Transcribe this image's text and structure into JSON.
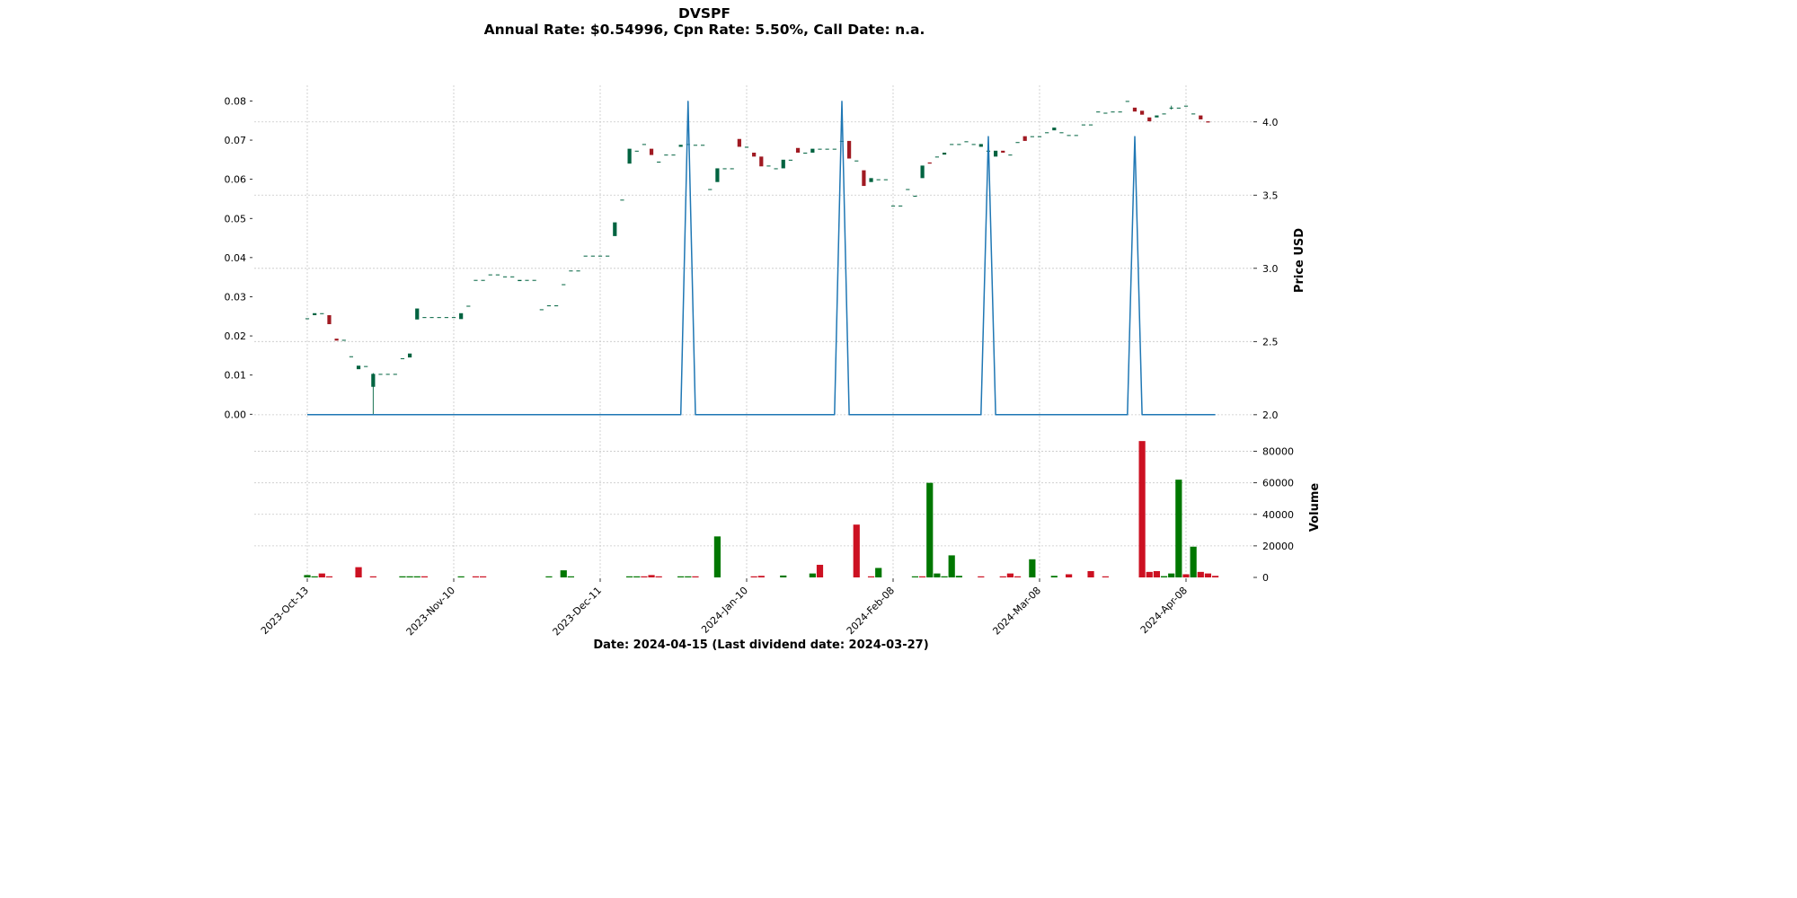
{
  "title": {
    "line1": "DVSPF",
    "line2": "Annual Rate: $0.54996, Cpn Rate: 5.50%, Call Date: n.a."
  },
  "xlabel": "Date: 2024-04-15   (Last dividend date: 2024-03-27)",
  "colors": {
    "up_candle": "#006340",
    "down_candle": "#a01a22",
    "up_volume": "#007700",
    "down_volume": "#cc1122",
    "dividend_line": "#1f77b4",
    "grid": "#c8c8c8"
  },
  "chart_data": [
    {
      "type": "candlestick",
      "name": "dividend-yield",
      "ylim": [
        -0.002,
        0.084
      ],
      "yticks": [
        "0.00",
        "0.01",
        "0.02",
        "0.03",
        "0.04",
        "0.05",
        "0.06",
        "0.07",
        "0.08"
      ],
      "ytick_values": [
        0,
        0.01,
        0.02,
        0.03,
        0.04,
        0.05,
        0.06,
        0.07,
        0.08
      ],
      "xtick_labels": [
        "2023-Oct-13",
        "2023-Nov-10",
        "2023-Dec-11",
        "2024-Jan-10",
        "2024-Feb-08",
        "2024-Mar-08",
        "2024-Apr-08"
      ],
      "xtick_index": [
        0,
        20,
        40,
        60,
        80,
        100,
        120
      ],
      "x_count": 126,
      "grid": true,
      "candles": [
        [
          0,
          0.0245,
          0.0245,
          0.0245,
          0.0245
        ],
        [
          1,
          0.0253,
          0.0258,
          0.0253,
          0.0258
        ],
        [
          2,
          0.0258,
          0.0258,
          0.0258,
          0.0258
        ],
        [
          3,
          0.0253,
          0.0253,
          0.023,
          0.023
        ],
        [
          4,
          0.0193,
          0.0193,
          0.0188,
          0.0188
        ],
        [
          5,
          0.019,
          0.019,
          0.019,
          0.019
        ],
        [
          6,
          0.0148,
          0.0148,
          0.0148,
          0.0148
        ],
        [
          7,
          0.0115,
          0.0124,
          0.0115,
          0.0124
        ],
        [
          8,
          0.0123,
          0.0123,
          0.0123,
          0.0123
        ],
        [
          9,
          0.007,
          0.0105,
          0.0,
          0.0103
        ],
        [
          10,
          0.0103,
          0.0103,
          0.0103,
          0.0103
        ],
        [
          11,
          0.0103,
          0.0103,
          0.0103,
          0.0103
        ],
        [
          12,
          0.0103,
          0.0103,
          0.0103,
          0.0103
        ],
        [
          13,
          0.0143,
          0.0143,
          0.0143,
          0.0143
        ],
        [
          14,
          0.0145,
          0.0155,
          0.0145,
          0.0155
        ],
        [
          15,
          0.0242,
          0.027,
          0.0242,
          0.027
        ],
        [
          16,
          0.0248,
          0.0248,
          0.0248,
          0.0248
        ],
        [
          17,
          0.0248,
          0.0248,
          0.0248,
          0.0248
        ],
        [
          18,
          0.0248,
          0.0248,
          0.0248,
          0.0248
        ],
        [
          19,
          0.0248,
          0.0248,
          0.0248,
          0.0248
        ],
        [
          20,
          0.0248,
          0.0248,
          0.0248,
          0.0248
        ],
        [
          21,
          0.0243,
          0.0258,
          0.0243,
          0.0258
        ],
        [
          22,
          0.0277,
          0.0277,
          0.0277,
          0.0277
        ],
        [
          23,
          0.0343,
          0.0343,
          0.0343,
          0.0343
        ],
        [
          24,
          0.0343,
          0.0343,
          0.0343,
          0.0343
        ],
        [
          25,
          0.0357,
          0.0357,
          0.0357,
          0.0357
        ],
        [
          26,
          0.0357,
          0.0357,
          0.0357,
          0.0357
        ],
        [
          27,
          0.0352,
          0.0352,
          0.0352,
          0.0352
        ],
        [
          28,
          0.0352,
          0.0352,
          0.0352,
          0.0352
        ],
        [
          29,
          0.034,
          0.0343,
          0.034,
          0.0343
        ],
        [
          30,
          0.0343,
          0.0343,
          0.0343,
          0.0343
        ],
        [
          31,
          0.0343,
          0.0343,
          0.0343,
          0.0343
        ],
        [
          32,
          0.0268,
          0.0268,
          0.0268,
          0.0268
        ],
        [
          33,
          0.0278,
          0.0278,
          0.0278,
          0.0278
        ],
        [
          34,
          0.0278,
          0.0278,
          0.0278,
          0.0278
        ],
        [
          35,
          0.0332,
          0.0332,
          0.0332,
          0.0332
        ],
        [
          36,
          0.0367,
          0.0367,
          0.0367,
          0.0367
        ],
        [
          37,
          0.0367,
          0.0367,
          0.0367,
          0.0367
        ],
        [
          38,
          0.0405,
          0.0405,
          0.0405,
          0.0405
        ],
        [
          39,
          0.0405,
          0.0405,
          0.0405,
          0.0405
        ],
        [
          40,
          0.0405,
          0.0405,
          0.0405,
          0.0405
        ],
        [
          41,
          0.0405,
          0.0405,
          0.0405,
          0.0405
        ],
        [
          42,
          0.0455,
          0.049,
          0.0455,
          0.049
        ],
        [
          43,
          0.0548,
          0.0548,
          0.0548,
          0.0548
        ],
        [
          44,
          0.064,
          0.0678,
          0.064,
          0.0678
        ],
        [
          45,
          0.0673,
          0.0673,
          0.0673,
          0.0673
        ],
        [
          46,
          0.069,
          0.069,
          0.069,
          0.069
        ],
        [
          47,
          0.0678,
          0.0678,
          0.0662,
          0.0662
        ],
        [
          48,
          0.0645,
          0.0645,
          0.0645,
          0.0645
        ],
        [
          49,
          0.0663,
          0.0663,
          0.0663,
          0.0663
        ],
        [
          50,
          0.0663,
          0.0663,
          0.0663,
          0.0663
        ],
        [
          51,
          0.0683,
          0.0688,
          0.0683,
          0.0688
        ],
        [
          52,
          0.069,
          0.069,
          0.069,
          0.069
        ],
        [
          53,
          0.0688,
          0.0688,
          0.0688,
          0.0688
        ],
        [
          54,
          0.0688,
          0.0688,
          0.0688,
          0.0688
        ],
        [
          55,
          0.0575,
          0.0575,
          0.0575,
          0.0575
        ],
        [
          56,
          0.0593,
          0.0628,
          0.0593,
          0.0628
        ],
        [
          57,
          0.0628,
          0.0628,
          0.0628,
          0.0628
        ],
        [
          58,
          0.0628,
          0.0628,
          0.0628,
          0.0628
        ],
        [
          59,
          0.0703,
          0.0703,
          0.0683,
          0.0683
        ],
        [
          60,
          0.0683,
          0.0683,
          0.0683,
          0.0683
        ],
        [
          61,
          0.0668,
          0.0668,
          0.0658,
          0.0658
        ],
        [
          62,
          0.0658,
          0.0658,
          0.0633,
          0.0633
        ],
        [
          63,
          0.0635,
          0.0635,
          0.0635,
          0.0635
        ],
        [
          64,
          0.0628,
          0.0628,
          0.0628,
          0.0628
        ],
        [
          65,
          0.0628,
          0.065,
          0.0628,
          0.065
        ],
        [
          66,
          0.065,
          0.065,
          0.065,
          0.065
        ],
        [
          67,
          0.068,
          0.068,
          0.0668,
          0.0668
        ],
        [
          68,
          0.0668,
          0.0668,
          0.0668,
          0.0668
        ],
        [
          69,
          0.0668,
          0.0678,
          0.0668,
          0.0678
        ],
        [
          70,
          0.0678,
          0.0678,
          0.0678,
          0.0678
        ],
        [
          71,
          0.0678,
          0.0678,
          0.0678,
          0.0678
        ],
        [
          72,
          0.0678,
          0.0678,
          0.0678,
          0.0678
        ],
        [
          73,
          0.0698,
          0.0698,
          0.0698,
          0.0698
        ],
        [
          74,
          0.0698,
          0.0698,
          0.0653,
          0.0653
        ],
        [
          75,
          0.0648,
          0.0648,
          0.0648,
          0.0648
        ],
        [
          76,
          0.0623,
          0.0623,
          0.0583,
          0.0583
        ],
        [
          77,
          0.0593,
          0.0603,
          0.0593,
          0.0603
        ],
        [
          78,
          0.06,
          0.06,
          0.06,
          0.06
        ],
        [
          79,
          0.06,
          0.06,
          0.06,
          0.06
        ],
        [
          80,
          0.0533,
          0.0533,
          0.0533,
          0.0533
        ],
        [
          81,
          0.0533,
          0.0533,
          0.0533,
          0.0533
        ],
        [
          82,
          0.0575,
          0.0575,
          0.0575,
          0.0575
        ],
        [
          83,
          0.0558,
          0.0558,
          0.0558,
          0.0558
        ],
        [
          84,
          0.0603,
          0.0635,
          0.0603,
          0.0635
        ],
        [
          85,
          0.0643,
          0.0643,
          0.064,
          0.064
        ],
        [
          86,
          0.0658,
          0.0658,
          0.0658,
          0.0658
        ],
        [
          87,
          0.0663,
          0.0668,
          0.0663,
          0.0668
        ],
        [
          88,
          0.069,
          0.069,
          0.069,
          0.069
        ],
        [
          89,
          0.069,
          0.069,
          0.069,
          0.069
        ],
        [
          90,
          0.0697,
          0.0697,
          0.0697,
          0.0697
        ],
        [
          91,
          0.069,
          0.069,
          0.069,
          0.069
        ],
        [
          92,
          0.0683,
          0.069,
          0.0683,
          0.069
        ],
        [
          93,
          0.0673,
          0.0673,
          0.0673,
          0.0673
        ],
        [
          94,
          0.0658,
          0.0673,
          0.0658,
          0.0673
        ],
        [
          95,
          0.0673,
          0.0673,
          0.0668,
          0.0668
        ],
        [
          96,
          0.0663,
          0.0663,
          0.0663,
          0.0663
        ],
        [
          97,
          0.0695,
          0.0695,
          0.0695,
          0.0695
        ],
        [
          98,
          0.071,
          0.071,
          0.0698,
          0.0698
        ],
        [
          99,
          0.071,
          0.071,
          0.071,
          0.071
        ],
        [
          100,
          0.071,
          0.071,
          0.071,
          0.071
        ],
        [
          101,
          0.072,
          0.072,
          0.072,
          0.072
        ],
        [
          102,
          0.0725,
          0.0732,
          0.0725,
          0.0732
        ],
        [
          103,
          0.072,
          0.072,
          0.072,
          0.072
        ],
        [
          104,
          0.0713,
          0.0713,
          0.0713,
          0.0713
        ],
        [
          105,
          0.0713,
          0.0713,
          0.0713,
          0.0713
        ],
        [
          106,
          0.074,
          0.074,
          0.074,
          0.074
        ],
        [
          107,
          0.074,
          0.074,
          0.074,
          0.074
        ],
        [
          108,
          0.0773,
          0.0773,
          0.0773,
          0.0773
        ],
        [
          109,
          0.077,
          0.077,
          0.077,
          0.077
        ],
        [
          110,
          0.0773,
          0.0773,
          0.0773,
          0.0773
        ],
        [
          111,
          0.0773,
          0.0773,
          0.0773,
          0.0773
        ],
        [
          112,
          0.08,
          0.08,
          0.08,
          0.08
        ],
        [
          113,
          0.0783,
          0.0783,
          0.0773,
          0.0773
        ],
        [
          114,
          0.0775,
          0.0775,
          0.0765,
          0.0765
        ],
        [
          115,
          0.0758,
          0.0758,
          0.0748,
          0.0748
        ],
        [
          116,
          0.0758,
          0.0763,
          0.0758,
          0.0763
        ],
        [
          117,
          0.0768,
          0.0768,
          0.0768,
          0.0768
        ],
        [
          118,
          0.0783,
          0.0788,
          0.0778,
          0.0783
        ],
        [
          119,
          0.0783,
          0.0783,
          0.0783,
          0.0783
        ],
        [
          120,
          0.0788,
          0.0788,
          0.0788,
          0.0788
        ],
        [
          121,
          0.0768,
          0.0768,
          0.0768,
          0.0768
        ],
        [
          122,
          0.0763,
          0.0763,
          0.0753,
          0.0753
        ],
        [
          123,
          0.0748,
          0.0748,
          0.0745,
          0.0745
        ]
      ]
    },
    {
      "type": "line",
      "name": "price",
      "ylabel": "Price USD",
      "ylim": [
        1.95,
        4.25
      ],
      "yticks": [
        "2.0",
        "2.5",
        "3.0",
        "3.5",
        "4.0"
      ],
      "ytick_values": [
        2.0,
        2.5,
        3.0,
        3.5,
        4.0
      ],
      "points": [
        [
          0,
          2.0
        ],
        [
          51,
          2.0
        ],
        [
          52,
          4.14
        ],
        [
          53,
          2.0
        ],
        [
          72,
          2.0
        ],
        [
          73,
          4.14
        ],
        [
          74,
          2.0
        ],
        [
          92,
          2.0
        ],
        [
          93,
          3.9
        ],
        [
          94,
          2.0
        ],
        [
          112,
          2.0
        ],
        [
          113,
          3.9
        ],
        [
          114,
          2.0
        ],
        [
          124,
          2.0
        ]
      ]
    },
    {
      "type": "bar",
      "name": "volume",
      "ylabel": "Volume",
      "ylim": [
        0,
        90000
      ],
      "yticks": [
        "0",
        "20000",
        "40000",
        "60000",
        "80000"
      ],
      "ytick_values": [
        0,
        20000,
        40000,
        60000,
        80000
      ],
      "bars": [
        [
          0,
          1500,
          "up"
        ],
        [
          1,
          500,
          "up"
        ],
        [
          2,
          2500,
          "down"
        ],
        [
          3,
          600,
          "down"
        ],
        [
          7,
          6500,
          "down"
        ],
        [
          9,
          600,
          "down"
        ],
        [
          13,
          700,
          "up"
        ],
        [
          14,
          700,
          "up"
        ],
        [
          15,
          700,
          "up"
        ],
        [
          16,
          700,
          "down"
        ],
        [
          21,
          600,
          "up"
        ],
        [
          23,
          600,
          "down"
        ],
        [
          24,
          600,
          "down"
        ],
        [
          33,
          400,
          "up"
        ],
        [
          35,
          4500,
          "up"
        ],
        [
          36,
          500,
          "up"
        ],
        [
          44,
          500,
          "up"
        ],
        [
          45,
          500,
          "up"
        ],
        [
          46,
          500,
          "down"
        ],
        [
          47,
          1500,
          "down"
        ],
        [
          48,
          400,
          "down"
        ],
        [
          51,
          600,
          "up"
        ],
        [
          52,
          400,
          "up"
        ],
        [
          53,
          400,
          "down"
        ],
        [
          56,
          26000,
          "up"
        ],
        [
          61,
          500,
          "down"
        ],
        [
          62,
          1000,
          "down"
        ],
        [
          65,
          1200,
          "up"
        ],
        [
          69,
          2500,
          "up"
        ],
        [
          70,
          8000,
          "down"
        ],
        [
          75,
          33500,
          "down"
        ],
        [
          77,
          600,
          "down"
        ],
        [
          78,
          6000,
          "up"
        ],
        [
          83,
          500,
          "up"
        ],
        [
          84,
          600,
          "down"
        ],
        [
          85,
          60000,
          "up"
        ],
        [
          86,
          2500,
          "up"
        ],
        [
          87,
          700,
          "up"
        ],
        [
          88,
          14000,
          "up"
        ],
        [
          89,
          1000,
          "up"
        ],
        [
          92,
          600,
          "down"
        ],
        [
          95,
          500,
          "down"
        ],
        [
          96,
          2500,
          "down"
        ],
        [
          97,
          500,
          "down"
        ],
        [
          99,
          11500,
          "up"
        ],
        [
          102,
          1000,
          "up"
        ],
        [
          104,
          2000,
          "down"
        ],
        [
          107,
          4000,
          "down"
        ],
        [
          109,
          400,
          "down"
        ],
        [
          114,
          86500,
          "down"
        ],
        [
          115,
          3500,
          "down"
        ],
        [
          116,
          4000,
          "down"
        ],
        [
          117,
          800,
          "up"
        ],
        [
          118,
          2500,
          "up"
        ],
        [
          119,
          62000,
          "up"
        ],
        [
          120,
          2000,
          "down"
        ],
        [
          121,
          19500,
          "up"
        ],
        [
          122,
          3500,
          "down"
        ],
        [
          123,
          2500,
          "down"
        ],
        [
          124,
          1000,
          "down"
        ]
      ]
    }
  ]
}
